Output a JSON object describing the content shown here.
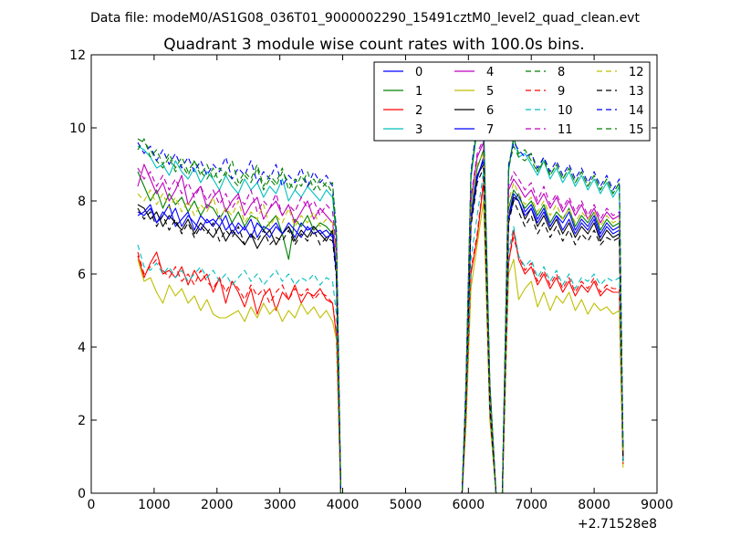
{
  "figure": {
    "suptitle": "Data file: modeM0/AS1G08_036T01_9000002290_15491cztM0_level2_quad_clean.evt"
  },
  "chart_data": {
    "type": "line",
    "title": "Quadrant 3 module wise count rates with 100.0s bins.",
    "xlabel": "",
    "ylabel": "",
    "x_offset_label": "+2.71528e8",
    "xlim": [
      0,
      9000
    ],
    "ylim": [
      0,
      12
    ],
    "xticks": [
      0,
      1000,
      2000,
      3000,
      4000,
      5000,
      6000,
      7000,
      8000,
      9000
    ],
    "yticks": [
      0,
      2,
      4,
      6,
      8,
      10,
      12
    ],
    "grid": false,
    "legend": {
      "placement": "top-right",
      "ncol": 4
    },
    "x": [
      740,
      840,
      940,
      1040,
      1140,
      1240,
      1340,
      1440,
      1540,
      1640,
      1740,
      1840,
      1940,
      2040,
      2140,
      2240,
      2340,
      2440,
      2540,
      2640,
      2740,
      2840,
      2940,
      3040,
      3140,
      3240,
      3340,
      3440,
      3540,
      3640,
      3740,
      3840,
      3900,
      3970,
      4100,
      5900,
      5960,
      6040,
      6140,
      6240,
      6340,
      6440,
      6540,
      6640,
      6720,
      6800,
      6900,
      7000,
      7100,
      7200,
      7300,
      7400,
      7500,
      7600,
      7700,
      7800,
      7900,
      8000,
      8100,
      8200,
      8300,
      8400,
      8460
    ],
    "series": [
      {
        "name": "0",
        "color": "#0000ff",
        "dash": "solid",
        "values": [
          7.7,
          7.6,
          7.8,
          7.4,
          7.6,
          7.9,
          7.3,
          7.5,
          7.7,
          7.2,
          7.6,
          7.4,
          7.5,
          7.3,
          7.6,
          7.1,
          7.4,
          7.2,
          7.5,
          7.0,
          7.3,
          7.2,
          7.4,
          7.1,
          7.3,
          7.0,
          7.4,
          7.2,
          7.3,
          7.1,
          7.2,
          7.0,
          6.0,
          0,
          0,
          0,
          2.5,
          7.4,
          8.6,
          9.2,
          2.5,
          0,
          0,
          7.5,
          8.0,
          8.2,
          7.7,
          7.9,
          7.5,
          7.8,
          7.3,
          7.6,
          7.4,
          7.7,
          7.2,
          7.5,
          7.3,
          7.6,
          7.1,
          7.4,
          7.2,
          7.3,
          0.9
        ]
      },
      {
        "name": "1",
        "color": "#008000",
        "dash": "solid",
        "values": [
          8.8,
          8.4,
          8.0,
          8.3,
          7.8,
          8.2,
          7.9,
          8.1,
          7.7,
          8.0,
          7.6,
          7.9,
          7.8,
          7.5,
          7.8,
          7.4,
          7.7,
          7.3,
          7.6,
          7.5,
          7.2,
          7.4,
          7.6,
          7.1,
          6.4,
          7.5,
          7.3,
          7.6,
          7.2,
          7.4,
          7.3,
          7.1,
          6.0,
          0,
          0,
          0,
          2.6,
          7.7,
          8.9,
          9.4,
          2.6,
          0,
          0,
          7.8,
          8.3,
          8.1,
          7.8,
          8.0,
          7.6,
          7.9,
          7.4,
          7.7,
          7.5,
          7.8,
          7.3,
          7.6,
          7.4,
          7.7,
          7.2,
          7.5,
          7.3,
          7.4,
          1.0
        ]
      },
      {
        "name": "2",
        "color": "#ff0000",
        "dash": "solid",
        "values": [
          6.5,
          5.9,
          6.3,
          6.6,
          6.0,
          6.1,
          5.9,
          6.2,
          5.7,
          6.1,
          5.8,
          6.0,
          5.5,
          5.9,
          5.2,
          5.8,
          5.5,
          5.1,
          5.6,
          4.9,
          5.4,
          5.6,
          5.0,
          5.5,
          5.3,
          5.7,
          5.2,
          5.5,
          5.4,
          5.6,
          5.3,
          5.2,
          4.3,
          0,
          0,
          0,
          2.0,
          6.0,
          7.0,
          8.5,
          2.2,
          0,
          0,
          6.3,
          7.2,
          6.4,
          6.0,
          6.2,
          5.7,
          6.0,
          5.6,
          5.9,
          5.5,
          5.8,
          5.4,
          5.7,
          5.5,
          5.8,
          5.4,
          5.6,
          5.5,
          5.5,
          0.8
        ]
      },
      {
        "name": "3",
        "color": "#00bfbf",
        "dash": "solid",
        "values": [
          9.5,
          9.4,
          9.2,
          8.9,
          9.0,
          8.7,
          9.1,
          8.8,
          8.6,
          8.9,
          8.5,
          8.8,
          8.6,
          8.3,
          8.7,
          8.4,
          8.2,
          8.6,
          8.3,
          8.5,
          8.1,
          8.4,
          8.2,
          8.6,
          8.0,
          8.3,
          8.1,
          8.4,
          8.2,
          8.0,
          8.3,
          8.1,
          6.9,
          0,
          0,
          0,
          2.9,
          8.6,
          10.0,
          10.3,
          3.0,
          0,
          0,
          8.8,
          9.8,
          9.2,
          9.3,
          9.0,
          8.7,
          9.1,
          8.6,
          8.9,
          8.5,
          8.8,
          8.4,
          8.7,
          8.3,
          8.6,
          8.2,
          8.5,
          8.1,
          8.4,
          1.2
        ]
      },
      {
        "name": "4",
        "color": "#bf00bf",
        "dash": "solid",
        "values": [
          8.4,
          9.0,
          8.6,
          8.2,
          8.5,
          8.0,
          8.3,
          8.7,
          7.9,
          8.2,
          8.4,
          7.8,
          8.1,
          8.3,
          7.7,
          8.0,
          8.2,
          7.6,
          7.9,
          8.1,
          7.5,
          7.8,
          8.0,
          7.6,
          7.9,
          7.4,
          7.7,
          8.0,
          7.5,
          7.8,
          7.6,
          7.4,
          6.5,
          0,
          0,
          0,
          2.7,
          8.0,
          9.2,
          9.6,
          2.7,
          0,
          0,
          8.3,
          8.6,
          8.4,
          8.1,
          8.3,
          7.9,
          8.2,
          7.8,
          8.1,
          7.7,
          8.0,
          7.6,
          7.9,
          7.5,
          7.8,
          7.4,
          7.7,
          7.5,
          7.6,
          1.1
        ]
      },
      {
        "name": "5",
        "color": "#bfbf00",
        "dash": "solid",
        "values": [
          6.4,
          5.8,
          5.9,
          5.5,
          5.2,
          5.7,
          5.4,
          5.6,
          5.2,
          5.4,
          5.0,
          5.3,
          4.9,
          4.8,
          4.8,
          4.9,
          5.0,
          4.7,
          5.1,
          4.8,
          5.2,
          4.9,
          5.1,
          4.7,
          5.0,
          4.8,
          5.2,
          4.9,
          5.1,
          4.8,
          5.0,
          4.7,
          4.2,
          0,
          0,
          0,
          1.8,
          5.6,
          6.8,
          8.0,
          2.0,
          0,
          0,
          6.0,
          6.4,
          5.3,
          5.6,
          5.8,
          5.1,
          5.5,
          5.0,
          5.4,
          5.2,
          5.5,
          5.0,
          5.3,
          4.9,
          5.2,
          5.0,
          5.1,
          4.9,
          5.0,
          0.7
        ]
      },
      {
        "name": "6",
        "color": "#000000",
        "dash": "solid",
        "values": [
          7.9,
          7.8,
          7.5,
          7.7,
          7.3,
          7.6,
          7.4,
          7.2,
          7.5,
          7.1,
          7.4,
          7.2,
          7.0,
          7.3,
          6.9,
          7.2,
          7.0,
          6.8,
          7.1,
          6.7,
          7.0,
          7.2,
          6.8,
          7.1,
          7.3,
          6.9,
          7.2,
          7.0,
          7.3,
          7.1,
          6.9,
          7.2,
          6.1,
          0,
          0,
          0,
          2.5,
          7.5,
          8.7,
          9.0,
          2.4,
          0,
          0,
          7.6,
          8.1,
          8.0,
          7.5,
          7.8,
          7.3,
          7.6,
          7.2,
          7.5,
          7.1,
          7.4,
          7.0,
          7.3,
          7.1,
          7.4,
          6.9,
          7.2,
          7.0,
          7.1,
          0.9
        ]
      },
      {
        "name": "7",
        "color": "#0000ff",
        "dash": "solid",
        "values": [
          7.6,
          7.7,
          7.9,
          7.4,
          7.7,
          7.5,
          7.8,
          7.3,
          7.6,
          7.4,
          7.2,
          7.5,
          7.3,
          7.6,
          7.2,
          7.4,
          7.1,
          7.3,
          7.0,
          7.4,
          7.2,
          7.0,
          7.3,
          7.1,
          7.4,
          7.2,
          7.0,
          7.3,
          7.1,
          7.2,
          7.0,
          7.1,
          6.1,
          0,
          0,
          0,
          2.5,
          7.5,
          8.7,
          9.1,
          2.5,
          0,
          0,
          7.6,
          8.2,
          8.0,
          7.6,
          7.8,
          7.4,
          7.7,
          7.3,
          7.6,
          7.2,
          7.5,
          7.1,
          7.4,
          7.2,
          7.5,
          7.0,
          7.3,
          7.1,
          7.2,
          0.9
        ]
      },
      {
        "name": "8",
        "color": "#008000",
        "dash": "dashed",
        "values": [
          9.7,
          9.6,
          9.4,
          9.1,
          8.9,
          9.2,
          8.8,
          9.0,
          8.7,
          9.1,
          8.8,
          8.6,
          8.9,
          8.5,
          8.8,
          8.6,
          8.4,
          8.7,
          8.5,
          8.9,
          8.3,
          8.6,
          8.4,
          8.8,
          8.5,
          8.3,
          8.7,
          8.4,
          8.6,
          8.3,
          8.5,
          8.2,
          7.0,
          0,
          0,
          0,
          2.9,
          8.7,
          10.1,
          10.2,
          3.0,
          0,
          0,
          8.9,
          9.7,
          9.3,
          9.4,
          9.1,
          8.8,
          9.2,
          8.7,
          9.0,
          8.6,
          8.9,
          8.5,
          8.8,
          8.4,
          8.7,
          8.3,
          8.6,
          8.2,
          8.5,
          1.2
        ]
      },
      {
        "name": "9",
        "color": "#ff0000",
        "dash": "dashed",
        "values": [
          6.6,
          6.0,
          6.2,
          6.4,
          6.1,
          5.9,
          6.2,
          5.8,
          6.0,
          5.7,
          6.1,
          5.8,
          5.6,
          5.9,
          5.5,
          5.8,
          5.6,
          5.3,
          5.7,
          5.4,
          5.6,
          5.2,
          5.5,
          5.7,
          5.3,
          5.6,
          5.4,
          5.6,
          5.3,
          5.5,
          5.4,
          5.2,
          4.4,
          0,
          0,
          0,
          2.0,
          6.1,
          7.1,
          8.6,
          2.2,
          0,
          0,
          6.4,
          7.0,
          6.5,
          6.1,
          6.3,
          5.8,
          6.1,
          5.7,
          6.0,
          5.6,
          5.9,
          5.5,
          5.8,
          5.6,
          5.9,
          5.5,
          5.7,
          5.6,
          5.6,
          0.8
        ]
      },
      {
        "name": "10",
        "color": "#00bfbf",
        "dash": "dashed",
        "values": [
          6.8,
          6.2,
          6.1,
          6.3,
          6.0,
          6.2,
          5.9,
          6.1,
          5.8,
          6.0,
          6.2,
          5.9,
          6.1,
          5.8,
          6.0,
          5.7,
          5.9,
          6.1,
          5.8,
          6.0,
          5.7,
          5.9,
          6.1,
          5.8,
          6.0,
          5.7,
          5.9,
          5.8,
          6.0,
          5.7,
          5.9,
          5.8,
          4.9,
          0,
          0,
          0,
          2.2,
          6.4,
          7.6,
          8.8,
          2.3,
          0,
          0,
          6.6,
          7.3,
          6.5,
          6.2,
          6.4,
          5.9,
          6.2,
          5.8,
          6.1,
          5.7,
          6.0,
          5.6,
          5.9,
          5.8,
          6.0,
          5.7,
          5.9,
          5.8,
          5.9,
          0.8
        ]
      },
      {
        "name": "11",
        "color": "#bf00bf",
        "dash": "dashed",
        "values": [
          8.9,
          8.6,
          8.8,
          8.4,
          8.7,
          8.3,
          8.6,
          8.2,
          8.5,
          8.1,
          8.4,
          8.0,
          8.3,
          7.9,
          8.2,
          7.8,
          8.1,
          7.9,
          8.3,
          7.7,
          8.0,
          7.8,
          8.2,
          7.6,
          7.9,
          7.7,
          8.1,
          7.8,
          8.0,
          7.6,
          7.9,
          7.7,
          6.7,
          0,
          0,
          0,
          2.7,
          8.1,
          9.3,
          9.7,
          2.8,
          0,
          0,
          8.4,
          8.8,
          8.6,
          8.3,
          8.5,
          8.0,
          8.4,
          7.9,
          8.2,
          7.8,
          8.1,
          7.7,
          8.0,
          7.6,
          7.9,
          7.5,
          7.8,
          7.6,
          7.7,
          1.1
        ]
      },
      {
        "name": "12",
        "color": "#bfbf00",
        "dash": "dashed",
        "values": [
          8.2,
          8.0,
          8.3,
          7.9,
          8.2,
          7.8,
          8.1,
          7.7,
          8.0,
          7.6,
          7.9,
          7.7,
          8.1,
          7.5,
          7.8,
          7.6,
          8.0,
          7.4,
          7.7,
          7.5,
          7.9,
          7.3,
          7.6,
          7.4,
          7.8,
          7.3,
          7.6,
          7.4,
          7.7,
          7.3,
          7.5,
          7.4,
          6.4,
          0,
          0,
          0,
          2.6,
          7.8,
          9.0,
          9.3,
          2.6,
          0,
          0,
          8.0,
          8.5,
          8.2,
          7.9,
          8.1,
          7.7,
          8.0,
          7.6,
          7.9,
          7.5,
          7.8,
          7.4,
          7.7,
          7.5,
          7.7,
          7.3,
          7.6,
          7.4,
          7.5,
          1.0
        ]
      },
      {
        "name": "13",
        "color": "#000000",
        "dash": "dashed",
        "values": [
          7.8,
          7.5,
          7.7,
          7.3,
          7.6,
          7.2,
          7.5,
          7.1,
          7.4,
          7.0,
          7.3,
          7.1,
          7.4,
          6.9,
          7.2,
          7.0,
          7.3,
          6.8,
          7.1,
          6.9,
          7.2,
          6.8,
          7.0,
          6.9,
          7.2,
          6.8,
          7.1,
          6.9,
          7.2,
          6.8,
          7.0,
          6.9,
          5.9,
          0,
          0,
          0,
          2.4,
          7.3,
          8.5,
          8.9,
          2.4,
          0,
          0,
          7.4,
          8.0,
          7.7,
          7.3,
          7.6,
          7.1,
          7.4,
          7.0,
          7.3,
          6.9,
          7.2,
          6.8,
          7.1,
          6.9,
          7.2,
          6.8,
          7.0,
          6.9,
          7.0,
          0.9
        ]
      },
      {
        "name": "14",
        "color": "#0000ff",
        "dash": "dashed",
        "values": [
          9.6,
          9.3,
          9.5,
          9.1,
          9.4,
          9.0,
          9.3,
          8.9,
          9.2,
          8.8,
          9.1,
          8.7,
          9.0,
          8.8,
          9.2,
          8.6,
          8.9,
          8.7,
          9.1,
          8.5,
          8.8,
          8.6,
          9.0,
          8.4,
          8.7,
          8.5,
          8.9,
          8.4,
          8.8,
          8.5,
          8.7,
          8.4,
          7.2,
          0,
          0,
          0,
          3.0,
          8.8,
          10.2,
          10.1,
          3.0,
          0,
          0,
          9.0,
          9.6,
          9.4,
          9.2,
          9.3,
          8.9,
          9.2,
          8.8,
          9.1,
          8.7,
          9.0,
          8.6,
          8.9,
          8.5,
          8.8,
          8.4,
          8.7,
          8.3,
          8.6,
          1.3
        ]
      },
      {
        "name": "15",
        "color": "#008000",
        "dash": "dashed",
        "values": [
          9.4,
          9.7,
          9.2,
          9.4,
          9.0,
          9.3,
          8.9,
          9.2,
          8.8,
          9.1,
          8.7,
          9.0,
          8.6,
          8.9,
          8.7,
          9.1,
          8.5,
          8.8,
          8.6,
          9.0,
          8.4,
          8.7,
          8.5,
          8.9,
          8.3,
          8.6,
          8.4,
          8.8,
          8.3,
          8.6,
          8.4,
          8.5,
          7.1,
          0,
          0,
          0,
          2.9,
          8.7,
          10.0,
          10.0,
          3.0,
          0,
          0,
          8.9,
          9.5,
          9.2,
          9.1,
          9.3,
          8.8,
          9.1,
          8.7,
          9.0,
          8.6,
          8.9,
          8.5,
          8.8,
          8.4,
          8.7,
          8.3,
          8.6,
          8.2,
          8.5,
          1.2
        ]
      }
    ]
  }
}
